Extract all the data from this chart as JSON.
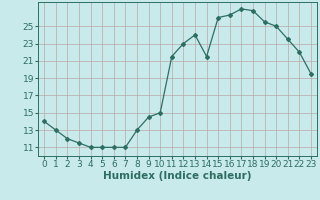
{
  "x": [
    0,
    1,
    2,
    3,
    4,
    5,
    6,
    7,
    8,
    9,
    10,
    11,
    12,
    13,
    14,
    15,
    16,
    17,
    18,
    19,
    20,
    21,
    22,
    23
  ],
  "y": [
    14.0,
    13.0,
    12.0,
    11.5,
    11.0,
    11.0,
    11.0,
    11.0,
    13.0,
    14.5,
    15.0,
    21.5,
    23.0,
    24.0,
    21.5,
    26.0,
    26.3,
    27.0,
    26.8,
    25.5,
    25.0,
    23.5,
    22.0,
    19.5
  ],
  "line_color": "#2e6e62",
  "marker": "D",
  "marker_size": 2.0,
  "bg_color": "#c8eaea",
  "grid_color": "#b8a8a8",
  "xlabel": "Humidex (Indice chaleur)",
  "ylim": [
    10.0,
    27.8
  ],
  "xlim": [
    -0.5,
    23.5
  ],
  "yticks": [
    11,
    13,
    15,
    17,
    19,
    21,
    23,
    25
  ],
  "xticks": [
    0,
    1,
    2,
    3,
    4,
    5,
    6,
    7,
    8,
    9,
    10,
    11,
    12,
    13,
    14,
    15,
    16,
    17,
    18,
    19,
    20,
    21,
    22,
    23
  ],
  "tick_label_fontsize": 6.5,
  "xlabel_fontsize": 7.5,
  "linewidth": 0.9
}
